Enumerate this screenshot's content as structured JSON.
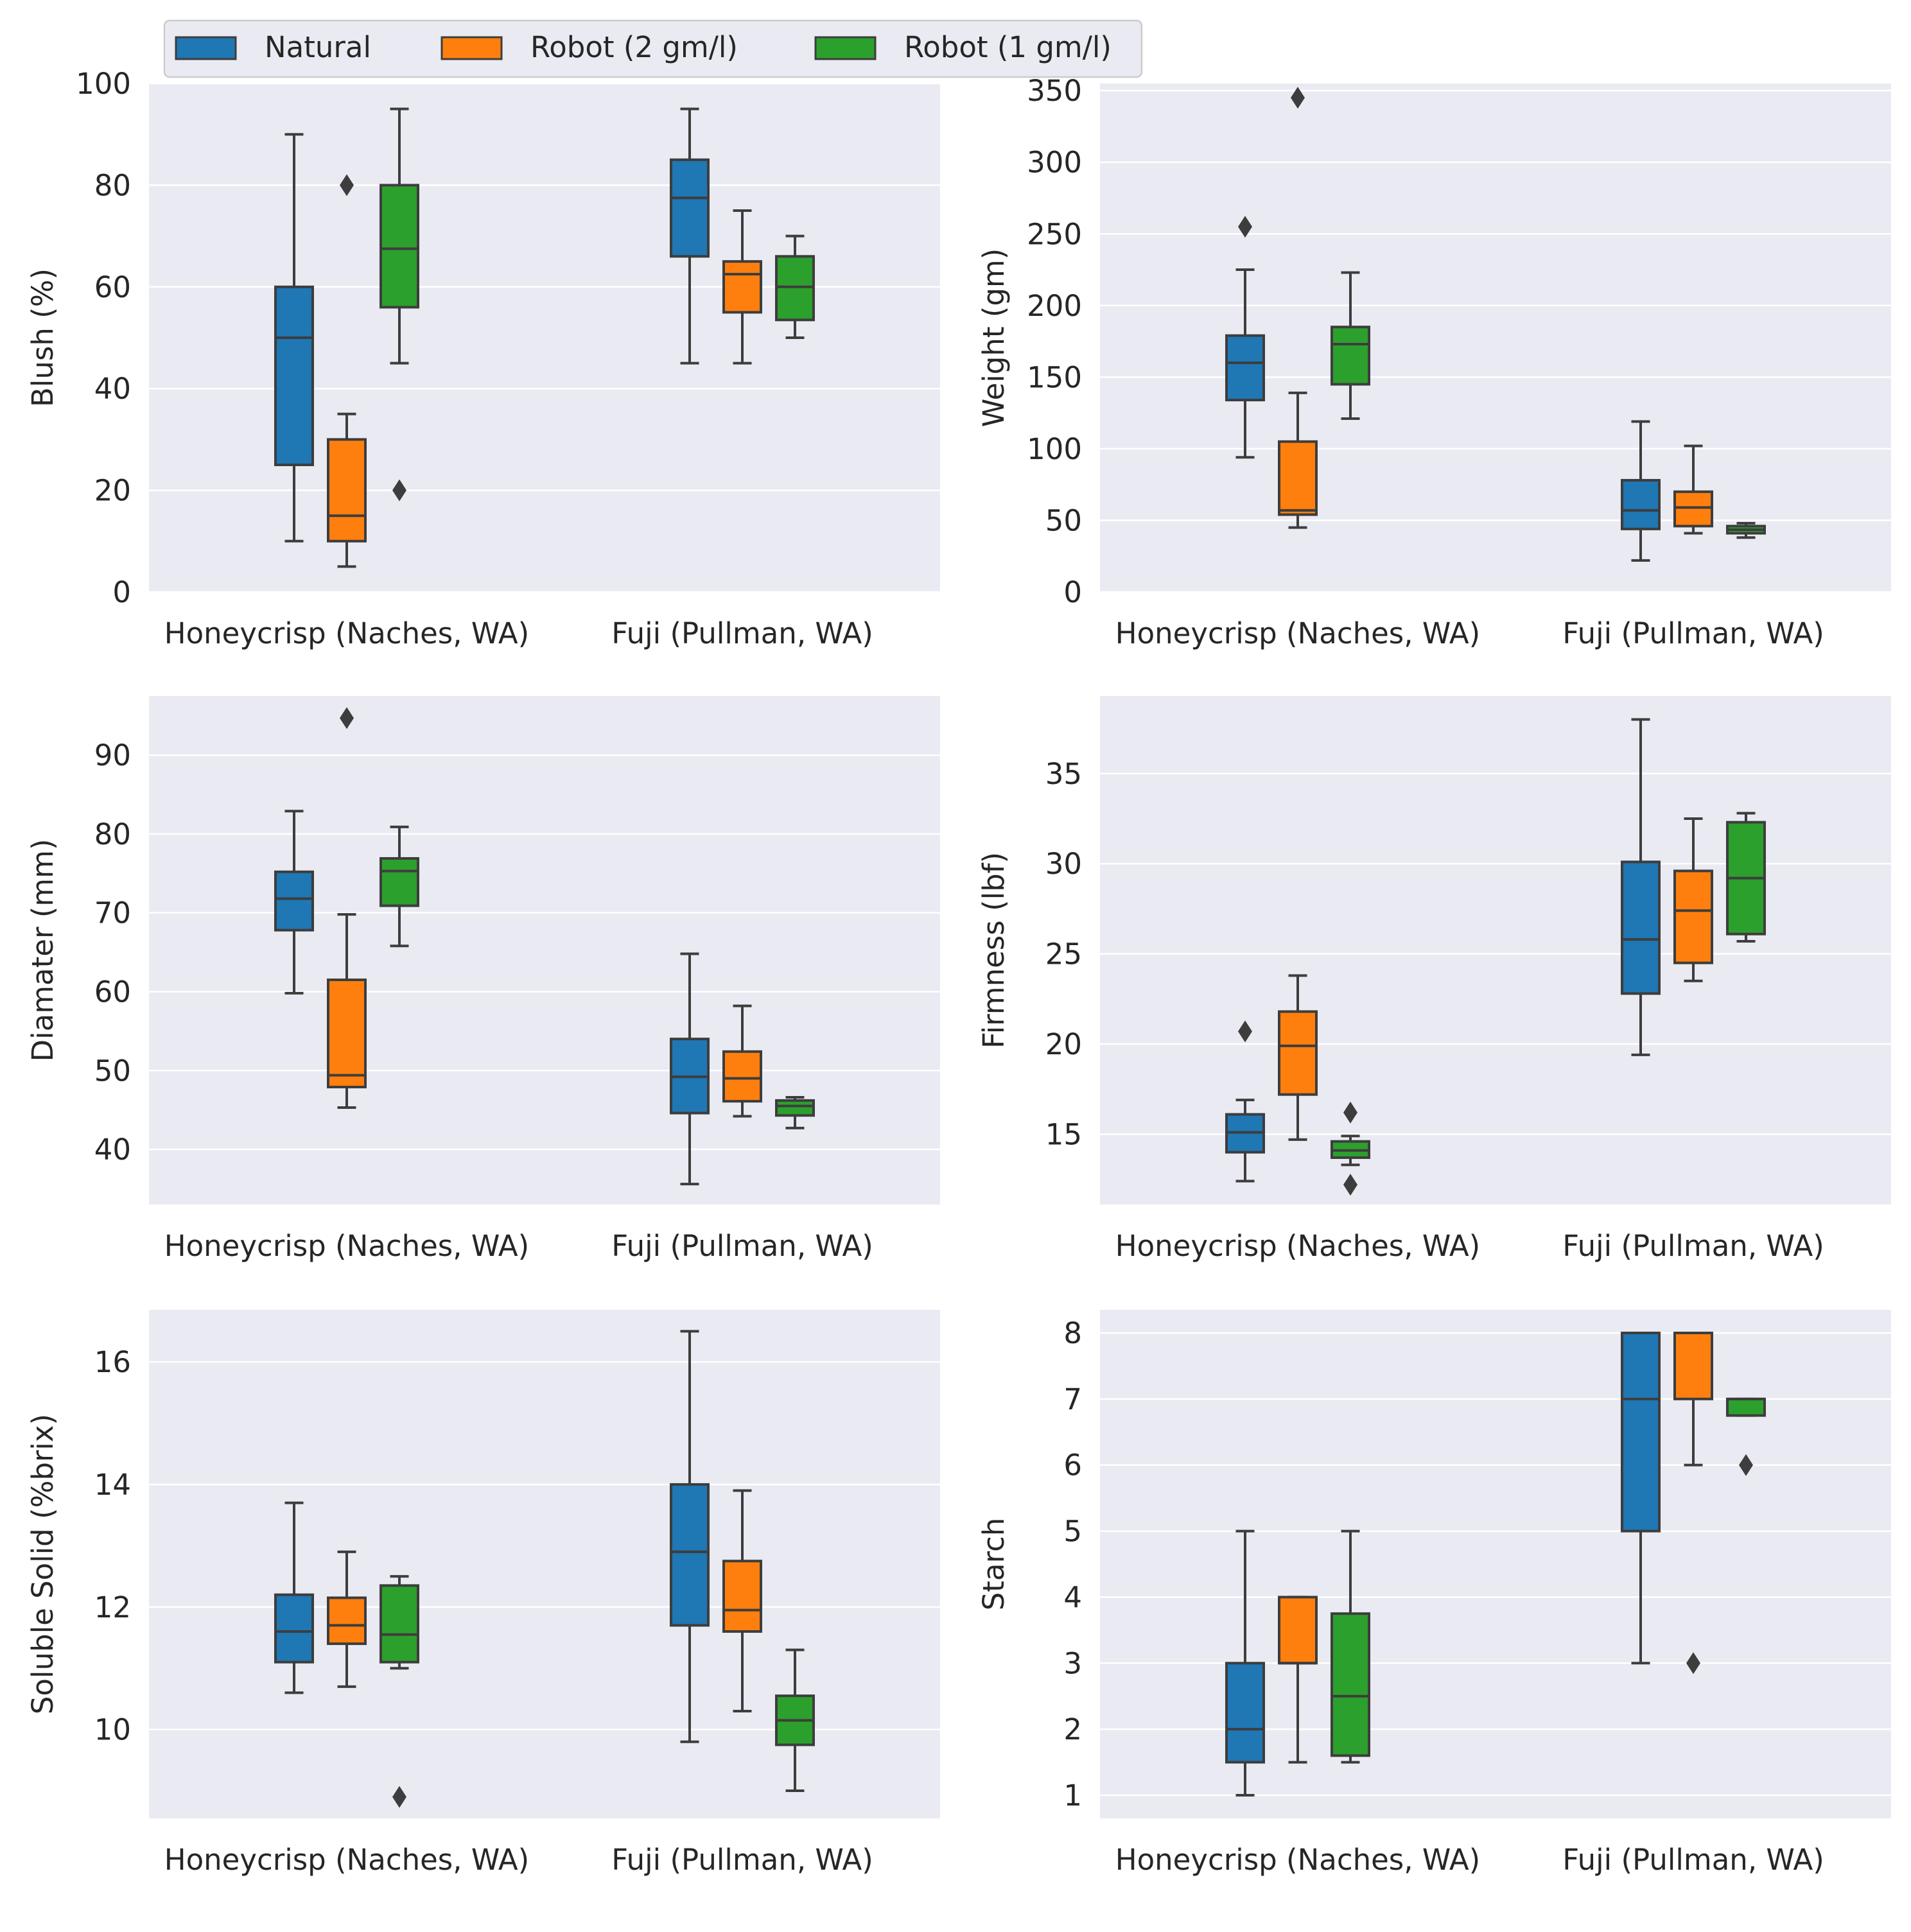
{
  "legend": {
    "placement": "top-center",
    "entries": [
      {
        "name": "Natural",
        "color": "#1f77b4"
      },
      {
        "name": "Robot (2 gm/l)",
        "color": "#ff7f0e"
      },
      {
        "name": "Robot (1 gm/l)",
        "color": "#2ca02c"
      }
    ]
  },
  "colors": {
    "background": "#eaeaf2",
    "grid": "#ffffff",
    "edge": "#3d3d3d"
  },
  "chart_data": [
    {
      "type": "box",
      "id": "blush",
      "title": "",
      "xlabel": "",
      "ylabel": "Blush (%)",
      "categories": [
        "Honeycrisp (Naches, WA)",
        "Fuji (Pullman, WA)"
      ],
      "ylim": [
        0,
        100
      ],
      "yticks": [
        "0",
        "20",
        "40",
        "60",
        "80",
        "100"
      ],
      "grid": true,
      "series": [
        {
          "name": "Natural",
          "boxes": [
            {
              "whislo": 10,
              "q1": 25,
              "med": 50,
              "q3": 60,
              "whishi": 90,
              "fliers": []
            },
            {
              "whislo": 45,
              "q1": 66,
              "med": 77.5,
              "q3": 85,
              "whishi": 95,
              "fliers": []
            }
          ]
        },
        {
          "name": "Robot (2 gm/l)",
          "boxes": [
            {
              "whislo": 5,
              "q1": 10,
              "med": 15,
              "q3": 30,
              "whishi": 35,
              "fliers": [
                80
              ]
            },
            {
              "whislo": 45,
              "q1": 55,
              "med": 62.5,
              "q3": 65,
              "whishi": 75,
              "fliers": []
            }
          ]
        },
        {
          "name": "Robot (1 gm/l)",
          "boxes": [
            {
              "whislo": 45,
              "q1": 56,
              "med": 67.5,
              "q3": 80,
              "whishi": 95,
              "fliers": [
                20
              ]
            },
            {
              "whislo": 50,
              "q1": 53.5,
              "med": 60,
              "q3": 66,
              "whishi": 70,
              "fliers": []
            }
          ]
        }
      ]
    },
    {
      "type": "box",
      "id": "weight",
      "title": "",
      "xlabel": "",
      "ylabel": "Weight (gm)",
      "categories": [
        "Honeycrisp (Naches, WA)",
        "Fuji (Pullman, WA)"
      ],
      "ylim": [
        0,
        355
      ],
      "yticks": [
        "0",
        "50",
        "100",
        "150",
        "200",
        "250",
        "300",
        "350"
      ],
      "grid": true,
      "series": [
        {
          "name": "Natural",
          "boxes": [
            {
              "whislo": 94,
              "q1": 134,
              "med": 160,
              "q3": 179,
              "whishi": 225,
              "fliers": [
                255
              ]
            },
            {
              "whislo": 22,
              "q1": 44,
              "med": 57,
              "q3": 78,
              "whishi": 119,
              "fliers": []
            }
          ]
        },
        {
          "name": "Robot (2 gm/l)",
          "boxes": [
            {
              "whislo": 45,
              "q1": 54,
              "med": 57,
              "q3": 105,
              "whishi": 139,
              "fliers": [
                345
              ]
            },
            {
              "whislo": 41,
              "q1": 46,
              "med": 59,
              "q3": 70,
              "whishi": 102,
              "fliers": []
            }
          ]
        },
        {
          "name": "Robot (1 gm/l)",
          "boxes": [
            {
              "whislo": 121,
              "q1": 145,
              "med": 173,
              "q3": 185,
              "whishi": 223,
              "fliers": []
            },
            {
              "whislo": 38,
              "q1": 41,
              "med": 43.5,
              "q3": 46,
              "whishi": 48,
              "fliers": []
            }
          ]
        }
      ]
    },
    {
      "type": "box",
      "id": "diameter",
      "title": "",
      "xlabel": "",
      "ylabel": "Diamater (mm)",
      "categories": [
        "Honeycrisp (Naches, WA)",
        "Fuji (Pullman, WA)"
      ],
      "ylim": [
        33,
        97.5
      ],
      "yticks": [
        "40",
        "50",
        "60",
        "70",
        "80",
        "90"
      ],
      "grid": true,
      "series": [
        {
          "name": "Natural",
          "boxes": [
            {
              "whislo": 59.8,
              "q1": 67.8,
              "med": 71.8,
              "q3": 75.2,
              "whishi": 82.9,
              "fliers": []
            },
            {
              "whislo": 35.6,
              "q1": 44.6,
              "med": 49.2,
              "q3": 54,
              "whishi": 64.8,
              "fliers": []
            }
          ]
        },
        {
          "name": "Robot (2 gm/l)",
          "boxes": [
            {
              "whislo": 45.3,
              "q1": 47.9,
              "med": 49.4,
              "q3": 61.5,
              "whishi": 69.8,
              "fliers": [
                94.7
              ]
            },
            {
              "whislo": 44.2,
              "q1": 46.1,
              "med": 49,
              "q3": 52.4,
              "whishi": 58.2,
              "fliers": []
            }
          ]
        },
        {
          "name": "Robot (1 gm/l)",
          "boxes": [
            {
              "whislo": 65.8,
              "q1": 70.9,
              "med": 75.3,
              "q3": 76.9,
              "whishi": 80.9,
              "fliers": []
            },
            {
              "whislo": 42.7,
              "q1": 44.3,
              "med": 45.5,
              "q3": 46.2,
              "whishi": 46.6,
              "fliers": []
            }
          ]
        }
      ]
    },
    {
      "type": "box",
      "id": "firmness",
      "title": "",
      "xlabel": "",
      "ylabel": "Firmness (lbf)",
      "categories": [
        "Honeycrisp (Naches, WA)",
        "Fuji (Pullman, WA)"
      ],
      "ylim": [
        11.1,
        39.3
      ],
      "yticks": [
        "15",
        "20",
        "25",
        "30",
        "35"
      ],
      "grid": true,
      "series": [
        {
          "name": "Natural",
          "boxes": [
            {
              "whislo": 12.4,
              "q1": 14,
              "med": 15.1,
              "q3": 16.1,
              "whishi": 16.9,
              "fliers": [
                20.7
              ]
            },
            {
              "whislo": 19.4,
              "q1": 22.8,
              "med": 25.8,
              "q3": 30.1,
              "whishi": 38,
              "fliers": []
            }
          ]
        },
        {
          "name": "Robot (2 gm/l)",
          "boxes": [
            {
              "whislo": 14.7,
              "q1": 17.2,
              "med": 19.9,
              "q3": 21.8,
              "whishi": 23.8,
              "fliers": []
            },
            {
              "whislo": 23.5,
              "q1": 24.5,
              "med": 27.4,
              "q3": 29.6,
              "whishi": 32.5,
              "fliers": []
            }
          ]
        },
        {
          "name": "Robot (1 gm/l)",
          "boxes": [
            {
              "whislo": 13.3,
              "q1": 13.7,
              "med": 14.1,
              "q3": 14.6,
              "whishi": 14.9,
              "fliers": [
                16.2,
                12.2
              ]
            },
            {
              "whislo": 25.7,
              "q1": 26.1,
              "med": 29.2,
              "q3": 32.3,
              "whishi": 32.8,
              "fliers": []
            }
          ]
        }
      ]
    },
    {
      "type": "box",
      "id": "soluble-solid",
      "title": "",
      "xlabel": "",
      "ylabel": "Soluble Solid (%brix)",
      "categories": [
        "Honeycrisp (Naches, WA)",
        "Fuji (Pullman, WA)"
      ],
      "ylim": [
        8.55,
        16.85
      ],
      "yticks": [
        "10",
        "12",
        "14",
        "16"
      ],
      "grid": true,
      "series": [
        {
          "name": "Natural",
          "boxes": [
            {
              "whislo": 10.6,
              "q1": 11.1,
              "med": 11.6,
              "q3": 12.2,
              "whishi": 13.7,
              "fliers": []
            },
            {
              "whislo": 9.8,
              "q1": 11.7,
              "med": 12.9,
              "q3": 14,
              "whishi": 16.5,
              "fliers": []
            }
          ]
        },
        {
          "name": "Robot (2 gm/l)",
          "boxes": [
            {
              "whislo": 10.7,
              "q1": 11.4,
              "med": 11.7,
              "q3": 12.15,
              "whishi": 12.9,
              "fliers": []
            },
            {
              "whislo": 10.3,
              "q1": 11.6,
              "med": 11.95,
              "q3": 12.75,
              "whishi": 13.9,
              "fliers": []
            }
          ]
        },
        {
          "name": "Robot (1 gm/l)",
          "boxes": [
            {
              "whislo": 11,
              "q1": 11.1,
              "med": 11.55,
              "q3": 12.35,
              "whishi": 12.5,
              "fliers": [
                8.9
              ]
            },
            {
              "whislo": 9,
              "q1": 9.75,
              "med": 10.15,
              "q3": 10.55,
              "whishi": 11.3,
              "fliers": []
            }
          ]
        }
      ]
    },
    {
      "type": "box",
      "id": "starch",
      "title": "",
      "xlabel": "",
      "ylabel": "Starch",
      "categories": [
        "Honeycrisp (Naches, WA)",
        "Fuji (Pullman, WA)"
      ],
      "ylim": [
        0.65,
        8.35
      ],
      "yticks": [
        "1",
        "2",
        "3",
        "4",
        "5",
        "6",
        "7",
        "8"
      ],
      "grid": true,
      "series": [
        {
          "name": "Natural",
          "boxes": [
            {
              "whislo": 1,
              "q1": 1.5,
              "med": 2,
              "q3": 3,
              "whishi": 5,
              "fliers": []
            },
            {
              "whislo": 3,
              "q1": 5,
              "med": 7,
              "q3": 8,
              "whishi": 8,
              "fliers": []
            }
          ]
        },
        {
          "name": "Robot (2 gm/l)",
          "boxes": [
            {
              "whislo": 1.5,
              "q1": 3,
              "med": 3,
              "q3": 4,
              "whishi": 4,
              "fliers": []
            },
            {
              "whislo": 6,
              "q1": 7,
              "med": 8,
              "q3": 8,
              "whishi": 8,
              "fliers": [
                3
              ]
            }
          ]
        },
        {
          "name": "Robot (1 gm/l)",
          "boxes": [
            {
              "whislo": 1.5,
              "q1": 1.6,
              "med": 2.5,
              "q3": 3.75,
              "whishi": 5,
              "fliers": []
            },
            {
              "whislo": 6.75,
              "q1": 6.75,
              "med": 7,
              "q3": 7,
              "whishi": 7,
              "fliers": [
                6
              ]
            }
          ]
        }
      ]
    }
  ]
}
